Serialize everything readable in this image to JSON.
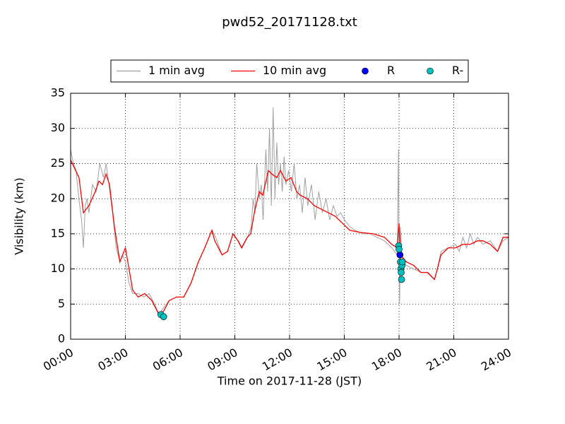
{
  "chart_data": {
    "type": "line",
    "title": "pwd52_20171128.txt",
    "x_label": "Time on 2017-11-28 (JST)",
    "y_label": "Visibility (km)",
    "xlim": [
      0,
      24
    ],
    "xticks": [
      {
        "value": 0,
        "label": "00:00"
      },
      {
        "value": 3,
        "label": "03:00"
      },
      {
        "value": 6,
        "label": "06:00"
      },
      {
        "value": 9,
        "label": "09:00"
      },
      {
        "value": 12,
        "label": "12:00"
      },
      {
        "value": 15,
        "label": "15:00"
      },
      {
        "value": 18,
        "label": "18:00"
      },
      {
        "value": 21,
        "label": "21:00"
      },
      {
        "value": 24,
        "label": "24:00"
      }
    ],
    "ylim": [
      0,
      35
    ],
    "yticks": [
      0,
      5,
      10,
      15,
      20,
      25,
      30,
      35
    ],
    "grid": true,
    "legend": "top",
    "series": [
      {
        "name": "1 min avg",
        "color": "#a0a0a0",
        "style": "line",
        "x": [
          0,
          0.15,
          0.3,
          0.45,
          0.6,
          0.7,
          0.8,
          0.9,
          1.0,
          1.2,
          1.4,
          1.6,
          1.8,
          1.95,
          2.1,
          2.3,
          2.5,
          2.7,
          2.85,
          3.0,
          3.2,
          3.4,
          3.7,
          4.0,
          4.3,
          4.6,
          4.85,
          5.1,
          5.4,
          5.8,
          6.2,
          6.6,
          7.0,
          7.35,
          7.75,
          7.95,
          8.3,
          8.6,
          8.9,
          9.2,
          9.4,
          9.7,
          9.9,
          10.0,
          10.1,
          10.2,
          10.35,
          10.45,
          10.55,
          10.7,
          10.8,
          10.9,
          11.0,
          11.1,
          11.2,
          11.3,
          11.4,
          11.5,
          11.6,
          11.7,
          11.8,
          11.95,
          12.1,
          12.25,
          12.4,
          12.55,
          12.7,
          12.85,
          13.0,
          13.2,
          13.4,
          13.6,
          13.8,
          14.0,
          14.2,
          14.4,
          14.6,
          14.8,
          15.0,
          15.3,
          15.6,
          16.0,
          16.4,
          16.8,
          17.2,
          17.6,
          17.9,
          17.97,
          18.0,
          18.03,
          18.08,
          18.15,
          18.25,
          18.4,
          18.8,
          19.2,
          19.6,
          19.95,
          20.1,
          20.3,
          20.7,
          21.1,
          21.3,
          21.5,
          21.7,
          21.9,
          22.1,
          22.3,
          22.6,
          23.0,
          23.4,
          23.7,
          24
        ],
        "values": [
          27,
          25,
          24,
          20,
          17,
          13,
          19,
          20,
          18,
          22,
          21,
          25,
          23,
          25,
          22,
          18,
          13,
          11,
          12,
          11,
          8,
          6.5,
          6.5,
          6,
          6.5,
          5,
          3.5,
          4.5,
          5.5,
          6,
          6,
          8,
          11,
          13,
          15.5,
          14.5,
          12,
          12.5,
          15,
          14,
          13,
          14.5,
          16,
          20,
          18,
          25,
          20,
          22,
          17,
          27,
          21,
          30,
          19,
          33,
          20,
          28,
          22,
          25,
          21,
          26,
          22,
          24,
          21,
          25,
          20,
          22,
          18,
          23,
          19,
          22,
          17,
          21,
          18,
          20,
          17,
          19,
          17.5,
          18,
          17,
          16,
          15.5,
          15,
          15,
          14.5,
          14,
          13,
          12,
          27,
          13,
          5,
          16,
          12,
          11,
          10.5,
          10,
          9.5,
          9.5,
          8.5,
          10,
          12.5,
          13,
          13.5,
          12.5,
          14.5,
          13,
          15,
          13.5,
          14.5,
          13.5,
          14,
          12.5,
          14,
          14.5
        ]
      },
      {
        "name": "10 min avg",
        "color": "#ff0000",
        "style": "line",
        "x": [
          0,
          0.46,
          0.7,
          1.0,
          1.35,
          1.55,
          1.75,
          1.94,
          2.13,
          2.4,
          2.7,
          3.0,
          3.2,
          3.4,
          3.7,
          4.06,
          4.45,
          4.84,
          5.1,
          5.4,
          5.8,
          6.2,
          6.6,
          7.0,
          7.35,
          7.74,
          7.9,
          8.3,
          8.6,
          8.9,
          9.17,
          9.37,
          9.68,
          9.87,
          10.07,
          10.34,
          10.53,
          10.84,
          11.03,
          11.3,
          11.5,
          11.8,
          12.08,
          12.39,
          12.58,
          12.97,
          13.36,
          13.74,
          14.13,
          14.5,
          14.9,
          15.3,
          15.87,
          16.6,
          17.2,
          17.6,
          17.9,
          18.0,
          18.08,
          18.4,
          18.8,
          19.2,
          19.55,
          19.94,
          20.1,
          20.3,
          20.7,
          21.1,
          21.5,
          21.9,
          22.3,
          22.6,
          23.0,
          23.4,
          23.7,
          24
        ],
        "values": [
          25.5,
          23,
          18,
          19,
          21,
          22.5,
          22,
          23.5,
          22,
          16,
          11,
          13,
          10,
          7,
          6,
          6.5,
          5.5,
          3.5,
          4,
          5.5,
          6,
          6,
          8,
          11,
          13,
          15.5,
          14,
          12,
          12.5,
          15,
          14,
          13,
          14.5,
          15,
          18,
          21,
          20.5,
          24,
          23.5,
          23,
          24,
          22.5,
          23,
          21,
          20.5,
          20,
          19,
          18.5,
          18,
          17.5,
          16.5,
          15.5,
          15.2,
          15,
          14.5,
          13.5,
          13,
          16.5,
          12,
          11,
          10.5,
          9.5,
          9.5,
          8.5,
          10,
          12,
          13,
          13,
          13.5,
          13.5,
          14,
          14,
          13.5,
          12.5,
          14.5,
          14.5
        ]
      },
      {
        "name": "R",
        "color": "#0000ff",
        "style": "marker",
        "x": [
          18.05,
          18.1
        ],
        "values": [
          12,
          11
        ]
      },
      {
        "name": "R-",
        "color": "#00bfbf",
        "style": "marker",
        "x": [
          4.95,
          5.1,
          17.98,
          18.0,
          18.08,
          18.1,
          18.12,
          18.14,
          18.16,
          18.18
        ],
        "values": [
          3.5,
          3.2,
          13.3,
          12.8,
          11,
          10,
          9.5,
          8.5,
          10.5,
          11
        ]
      }
    ]
  }
}
